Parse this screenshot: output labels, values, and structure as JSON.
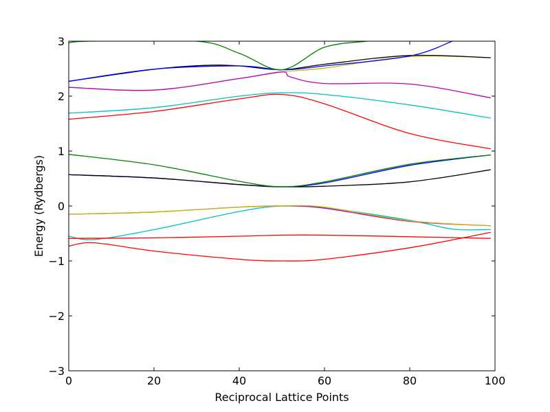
{
  "chart_data": {
    "type": "line",
    "title": "",
    "xlabel": "Reciprocal Lattice Points",
    "ylabel": "Energy (Rydbergs)",
    "xlim": [
      0,
      100
    ],
    "ylim": [
      -3,
      3
    ],
    "xticks": [
      0,
      20,
      40,
      60,
      80,
      100
    ],
    "yticks": [
      -3,
      -2,
      -1,
      0,
      1,
      2,
      3
    ],
    "xtick_labels": [
      "0",
      "20",
      "40",
      "60",
      "80",
      "100"
    ],
    "ytick_labels": [
      "−3",
      "−2",
      "−1",
      "0",
      "1",
      "2",
      "3"
    ],
    "grid": false,
    "legend": "none",
    "series": [
      {
        "color": "#ff0000",
        "x": [
          0,
          6,
          20,
          40,
          50,
          60,
          80,
          99
        ],
        "y": [
          -0.73,
          -0.67,
          -0.82,
          -0.97,
          -1.0,
          -0.97,
          -0.76,
          -0.48
        ]
      },
      {
        "color": "#00bfbf",
        "x": [
          0,
          6,
          20,
          40,
          50,
          60,
          80,
          90,
          99
        ],
        "y": [
          -0.55,
          -0.61,
          -0.43,
          -0.1,
          0.0,
          -0.03,
          -0.26,
          -0.42,
          -0.43
        ]
      },
      {
        "color": "#bf00bf",
        "x": [
          0,
          20,
          40,
          50,
          60,
          80,
          99
        ],
        "y": [
          -0.15,
          -0.11,
          -0.02,
          0.0,
          -0.04,
          -0.28,
          -0.36
        ]
      },
      {
        "color": "#bfbf00",
        "x": [
          0,
          20,
          40,
          50,
          60,
          80,
          99
        ],
        "y": [
          -0.15,
          -0.11,
          -0.02,
          0.0,
          -0.02,
          -0.27,
          -0.36
        ]
      },
      {
        "color": "#ff0000",
        "x": [
          0,
          20,
          40,
          50,
          60,
          80,
          99
        ],
        "y": [
          -0.59,
          -0.58,
          -0.55,
          -0.53,
          -0.53,
          -0.56,
          -0.59
        ]
      },
      {
        "color": "#0000ff",
        "x": [
          0,
          20,
          40,
          50,
          60,
          80,
          99
        ],
        "y": [
          0.57,
          0.51,
          0.39,
          0.35,
          0.42,
          0.74,
          0.93
        ]
      },
      {
        "color": "#000000",
        "x": [
          0,
          20,
          40,
          50,
          60,
          80,
          99
        ],
        "y": [
          0.57,
          0.51,
          0.39,
          0.35,
          0.36,
          0.44,
          0.66
        ]
      },
      {
        "color": "#008000",
        "x": [
          0,
          20,
          40,
          50,
          60,
          80,
          99
        ],
        "y": [
          0.94,
          0.75,
          0.45,
          0.35,
          0.44,
          0.76,
          0.93
        ]
      },
      {
        "color": "#ff0000",
        "x": [
          0,
          20,
          40,
          50,
          60,
          80,
          99
        ],
        "y": [
          1.58,
          1.72,
          1.95,
          2.03,
          1.86,
          1.32,
          1.04
        ]
      },
      {
        "color": "#00bfbf",
        "x": [
          0,
          20,
          40,
          50,
          60,
          80,
          99
        ],
        "y": [
          1.69,
          1.79,
          2.0,
          2.06,
          2.03,
          1.84,
          1.6
        ]
      },
      {
        "color": "#bfbf00",
        "x": [
          0,
          20,
          40,
          50,
          60,
          80,
          99
        ],
        "y": [
          2.16,
          2.11,
          2.32,
          2.44,
          2.51,
          2.72,
          2.7
        ]
      },
      {
        "color": "#bf00bf",
        "x": [
          0,
          20,
          40,
          50,
          52,
          60,
          80,
          99
        ],
        "y": [
          2.16,
          2.11,
          2.32,
          2.44,
          2.35,
          2.23,
          2.22,
          1.97
        ]
      },
      {
        "color": "#000000",
        "x": [
          0,
          20,
          32,
          40,
          50,
          60,
          80,
          99
        ],
        "y": [
          2.27,
          2.49,
          2.56,
          2.55,
          2.48,
          2.58,
          2.74,
          2.7
        ]
      },
      {
        "color": "#0000ff",
        "x": [
          0,
          20,
          40,
          50,
          60,
          80,
          90
        ],
        "y": [
          2.27,
          2.49,
          2.55,
          2.48,
          2.55,
          2.73,
          3.0
        ]
      },
      {
        "color": "#008000",
        "x": [
          0,
          5,
          30,
          40,
          50,
          60,
          70
        ],
        "y": [
          2.97,
          3.0,
          3.0,
          2.78,
          2.48,
          2.89,
          3.0
        ]
      }
    ]
  }
}
